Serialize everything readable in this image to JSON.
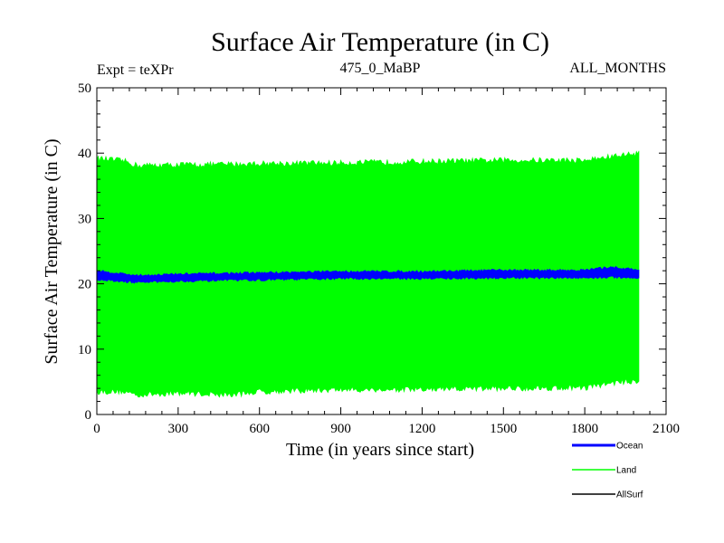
{
  "chart_data": {
    "type": "line",
    "title": "Surface Air Temperature (in C)",
    "subtitle_left": "Expt = teXPr",
    "subtitle_center": "475_0_MaBP",
    "subtitle_right": "ALL_MONTHS",
    "xlabel": "Time (in years since start)",
    "ylabel": "Surface Air Temperature (in C)",
    "xlim": [
      0,
      2100
    ],
    "ylim": [
      0,
      50
    ],
    "x_ticks": [
      0,
      300,
      600,
      900,
      1200,
      1500,
      1800,
      2100
    ],
    "y_ticks": [
      0,
      10,
      20,
      30,
      40,
      50
    ],
    "x_data_range": [
      0,
      2000
    ],
    "grid": false,
    "legend_position": "bottom-right",
    "series": [
      {
        "name": "Ocean",
        "color": "#0000ff",
        "band": {
          "x": [
            0,
            150,
            300,
            600,
            900,
            1200,
            1500,
            1800,
            1900,
            2000
          ],
          "low": [
            20.6,
            20.2,
            20.4,
            20.6,
            20.8,
            20.8,
            20.9,
            20.9,
            21.0,
            20.9
          ],
          "high": [
            22.0,
            21.3,
            21.5,
            21.7,
            21.9,
            21.9,
            22.1,
            22.1,
            22.6,
            22.1
          ]
        }
      },
      {
        "name": "Land",
        "color": "#00ff00",
        "band": {
          "x": [
            0,
            100,
            150,
            300,
            500,
            600,
            900,
            1200,
            1500,
            1800,
            1900,
            2000
          ],
          "low": [
            3.5,
            3.5,
            3.0,
            3.3,
            3.0,
            3.5,
            3.8,
            3.8,
            4.0,
            4.1,
            4.8,
            5.2
          ],
          "high": [
            39.2,
            38.8,
            38.1,
            38.2,
            38.3,
            38.4,
            38.5,
            38.7,
            38.9,
            38.9,
            39.5,
            40.0
          ]
        }
      },
      {
        "name": "AllSurf",
        "color": "#000000",
        "band": null
      }
    ]
  }
}
